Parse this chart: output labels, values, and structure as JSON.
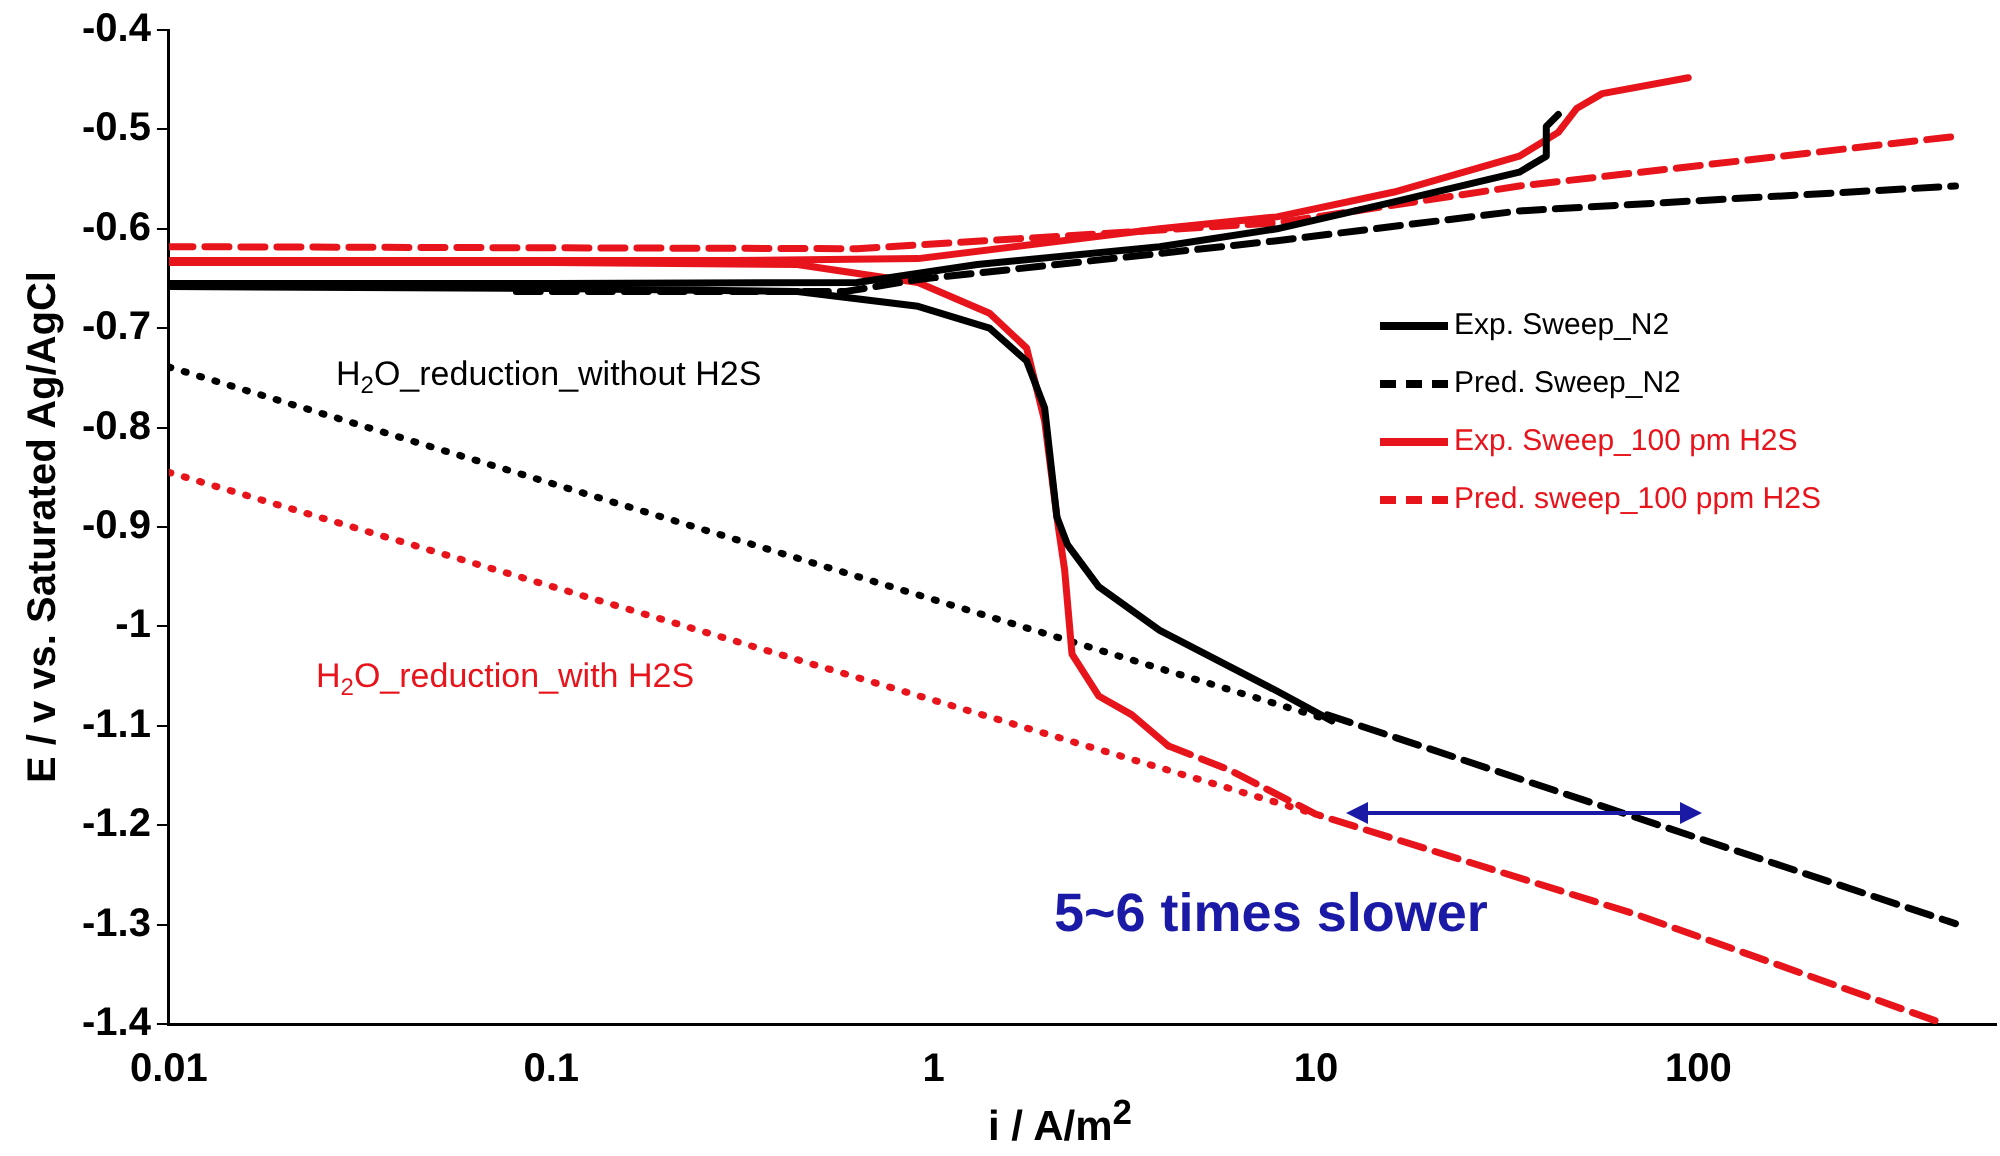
{
  "chart_data": {
    "type": "line",
    "xlabel": "i / A/m$^{2}$",
    "ylabel": "E / v vs. Saturated Ag/AgCl",
    "log": "x",
    "xlim": [
      0.01,
      600
    ],
    "xticks": [
      0.01,
      0.1,
      1,
      10,
      100
    ],
    "ylim": [
      -1.4,
      -0.4
    ],
    "yticks": [
      -1.4,
      -1.3,
      -1.2,
      -1.1,
      -1,
      -0.9,
      -0.8,
      -0.7,
      -0.6,
      -0.5,
      -0.4
    ],
    "grid": false,
    "legend": "right",
    "marker": "none",
    "series": [
      {
        "name": "Exp. Sweep_N2",
        "color": "#000000",
        "line_style": "solid",
        "x": [
          11,
          7.9,
          3.9,
          2.7,
          2.24,
          2.1,
          1.95,
          1.75,
          1.4,
          0.91,
          0.44,
          0.1,
          0.01,
          0.01,
          0.1,
          0.63,
          1.3,
          3.9,
          7.9,
          16,
          34,
          40,
          40,
          43
        ],
        "values": [
          -1.095,
          -1.065,
          -1.004,
          -0.96,
          -0.918,
          -0.89,
          -0.78,
          -0.733,
          -0.7,
          -0.678,
          -0.663,
          -0.66,
          -0.658,
          -0.655,
          -0.655,
          -0.654,
          -0.636,
          -0.618,
          -0.6,
          -0.573,
          -0.543,
          -0.527,
          -0.497,
          -0.485
        ]
      },
      {
        "name": "Pred. Sweep_N2",
        "color": "#000000",
        "line_style": "dashed",
        "x": [
          0.081,
          0.59,
          0.91,
          7.9,
          34,
          470,
          100,
          10.7,
          470
        ],
        "values": [
          -0.663,
          -0.663,
          -0.651,
          -0.612,
          -0.582,
          -0.557,
          null,
          -1.089,
          -1.299
        ]
      },
      {
        "name": "Exp. Sweep_100 pm H2S",
        "color": "#e8141c",
        "line_style": "solid",
        "x": [
          4.1,
          3.3,
          2.7,
          2.3,
          2.2,
          2.1,
          1.95,
          1.75,
          1.4,
          0.91,
          0.44,
          0.1,
          0.01,
          0.01,
          0.1,
          0.3,
          0.91,
          3.9,
          7.9,
          16,
          34,
          43,
          48,
          56,
          94
        ],
        "values": [
          -1.12,
          -1.089,
          -1.07,
          -1.028,
          -0.943,
          -0.89,
          -0.793,
          -0.72,
          -0.685,
          -0.654,
          -0.636,
          -0.634,
          -0.634,
          -0.632,
          -0.632,
          -0.632,
          -0.63,
          -0.6,
          -0.588,
          -0.563,
          -0.527,
          -0.503,
          -0.479,
          -0.464,
          -0.448
        ]
      },
      {
        "name": "Pred. sweep_100 ppm H2S",
        "color": "#e8141c",
        "line_style": "dashed",
        "x": [
          0.01,
          0.63,
          7.9,
          34,
          470,
          100,
          4.1,
          5.9,
          10,
          69,
          440
        ],
        "values": [
          -0.618,
          -0.62,
          -0.594,
          -0.557,
          -0.507,
          null,
          -1.12,
          -1.144,
          -1.189,
          -1.29,
          -1.4
        ]
      },
      {
        "color": "#000000",
        "line_style": "dotted",
        "x": [
          0.01,
          11
        ],
        "values": [
          -0.739,
          -1.095
        ]
      },
      {
        "color": "#e8141c",
        "line_style": "dotted",
        "x": [
          0.01,
          10
        ],
        "values": [
          -0.845,
          -1.189
        ]
      }
    ],
    "annotations": [
      "H$_{2}$O_reduction_without H2S",
      "H$_{2}$O_reduction_with H2S",
      "5~6 times slower"
    ]
  }
}
